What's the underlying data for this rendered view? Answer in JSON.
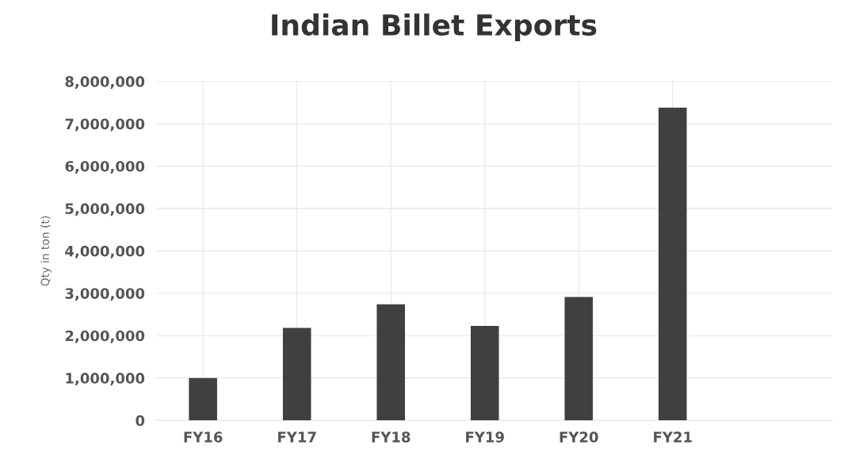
{
  "chart_data": {
    "type": "bar",
    "title": "Indian Billet Exports",
    "ylabel": "Qty in ton (t)",
    "categories": [
      "FY16",
      "FY17",
      "FY18",
      "FY19",
      "FY20",
      "FY21"
    ],
    "values": [
      1000000,
      2180000,
      2740000,
      2230000,
      2910000,
      7380000
    ],
    "color": "#404040",
    "ylim": [
      0,
      8000000
    ],
    "yticks": [
      {
        "value": 0,
        "label": "0"
      },
      {
        "value": 1000000,
        "label": "1,000,000"
      },
      {
        "value": 2000000,
        "label": "2,000,000"
      },
      {
        "value": 3000000,
        "label": "3,000,000"
      },
      {
        "value": 4000000,
        "label": "4,000,000"
      },
      {
        "value": 5000000,
        "label": "5,000,000"
      },
      {
        "value": 6000000,
        "label": "6,000,000"
      },
      {
        "value": 7000000,
        "label": "7,000,000"
      },
      {
        "value": 8000000,
        "label": "8,000,000"
      }
    ],
    "grid": true
  }
}
